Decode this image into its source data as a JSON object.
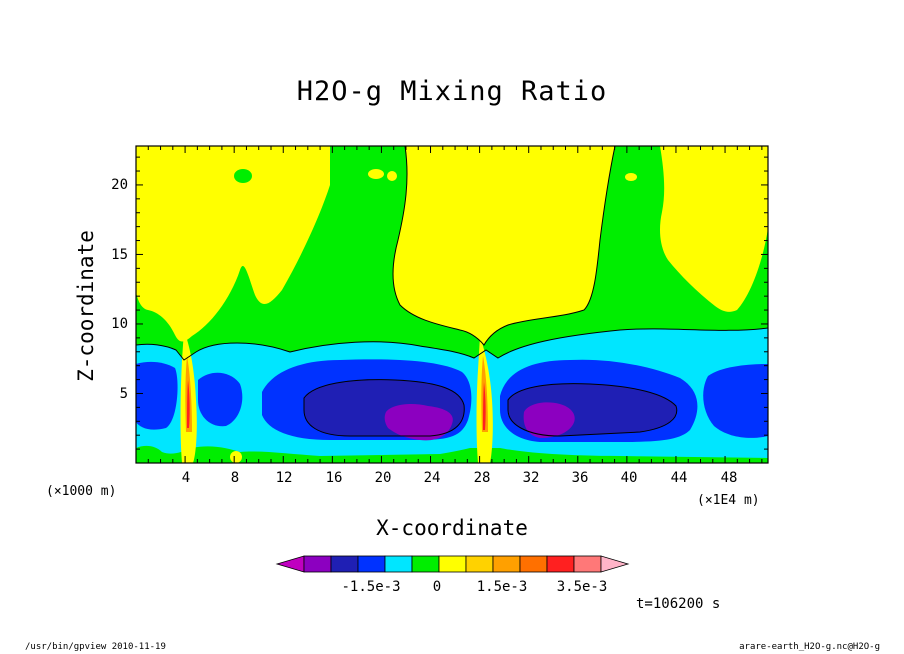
{
  "chart_data": {
    "type": "heatmap",
    "title": "H2O-g Mixing Ratio",
    "xlabel": "X-coordinate",
    "ylabel": "Z-coordinate",
    "x_unit_left": "(×1000 m)",
    "x_unit_right": "(×1E4 m)",
    "xlim": [
      0,
      51.5
    ],
    "ylim": [
      0,
      22.8
    ],
    "x_ticks": [
      "4",
      "8",
      "12",
      "16",
      "20",
      "24",
      "28",
      "32",
      "36",
      "40",
      "44",
      "48"
    ],
    "y_ticks": [
      "5",
      "10",
      "15",
      "20"
    ],
    "x_tick_values": [
      4,
      8,
      12,
      16,
      20,
      24,
      28,
      32,
      36,
      40,
      44,
      48
    ],
    "y_tick_values": [
      5,
      10,
      15,
      20
    ],
    "colorbar": {
      "colors": [
        "#c000c0",
        "#8c00c0",
        "#1f1fb4",
        "#0032ff",
        "#00e6ff",
        "#00ee00",
        "#ffff00",
        "#ffd200",
        "#ffa000",
        "#ff7000",
        "#ff2020",
        "#ff7878",
        "#ffb4c8"
      ],
      "labels": [
        "-1.5e-3",
        "0",
        "1.5e-3",
        "3.5e-3"
      ],
      "label_edges": [
        3,
        6,
        9,
        12
      ]
    },
    "time_label": "t=106200 s"
  },
  "footer": {
    "left": "/usr/bin/gpview  2010-11-19",
    "right": "arare-earth_H2O-g.nc@H2O-g"
  }
}
